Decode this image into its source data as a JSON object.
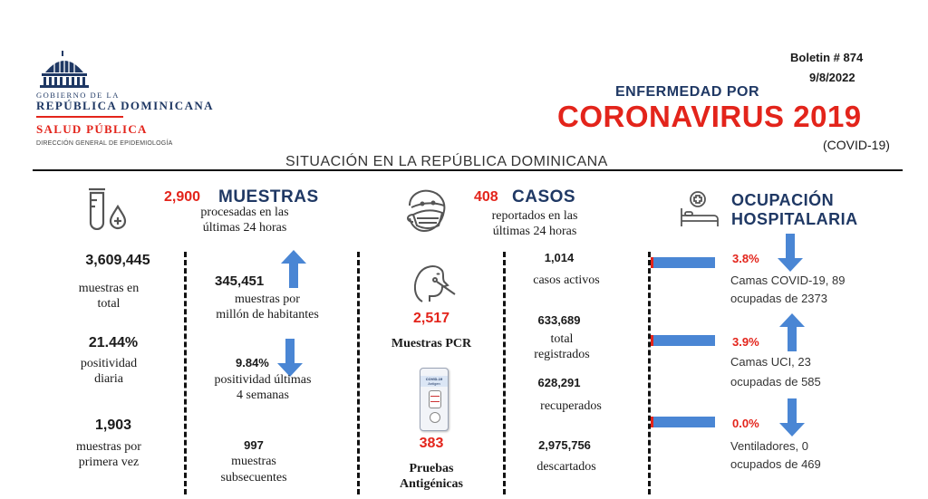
{
  "header": {
    "gov_line1": "GOBIERNO DE LA",
    "gov_line2": "REPÚBLICA DOMINICANA",
    "ministry": "SALUD PÚBLICA",
    "direction": "DIRECCIÓN GENERAL DE EPIDEMIOLOGÍA",
    "bulletin": "Boletin # 874",
    "date": "9/8/2022",
    "disease_line": "ENFERMEDAD POR",
    "disease_name": "CORONAVIRUS 2019",
    "disease_abbr": "(COVID-19)",
    "situation": "SITUACIÓN EN LA REPÚBLICA DOMINICANA"
  },
  "muestras": {
    "count": "2,900",
    "title": "MUESTRAS",
    "subtitle1": "procesadas en las",
    "subtitle2": "últimas 24 horas",
    "total_value": "3,609,445",
    "total_label1": "muestras en",
    "total_label2": "total",
    "positividad_value": "21.44%",
    "positividad_label1": "positividad",
    "positividad_label2": "diaria",
    "primera_value": "1,903",
    "primera_label1": "muestras por",
    "primera_label2": "primera vez",
    "millon_value": "345,451",
    "millon_label1": "muestras por",
    "millon_label2": "millón de habitantes",
    "semanas_value": "9.84%",
    "semanas_label1": "positividad últimas",
    "semanas_label2": "4 semanas",
    "subsec_value": "997",
    "subsec_label1": "muestras",
    "subsec_label2": "subsecuentes"
  },
  "pruebas": {
    "pcr_value": "2,517",
    "pcr_label": "Muestras PCR",
    "antigen_value": "383",
    "antigen_label1": "Pruebas",
    "antigen_label2": "Antigénicas",
    "kit_text1": "COVID-19",
    "kit_text2": "Antigen"
  },
  "casos": {
    "count": "408",
    "title": "CASOS",
    "subtitle1": "reportados en las",
    "subtitle2": "últimas 24 horas",
    "activos_value": "1,014",
    "activos_label": "casos activos",
    "total_value": "633,689",
    "total_label1": "total",
    "total_label2": "registrados",
    "recuperados_value": "628,291",
    "recuperados_label": "recuperados",
    "descartados_value": "2,975,756",
    "descartados_label": "descartados"
  },
  "ocupacion": {
    "title1": "OCUPACIÓN",
    "title2": "HOSPITALARIA",
    "covid_pct": "3.8%",
    "covid_fill": 3.8,
    "covid_label1": "Camas COVID-19,  89",
    "covid_label2": "ocupadas de 2373",
    "uci_pct": "3.9%",
    "uci_fill": 3.9,
    "uci_label1": "Camas UCI,  23",
    "uci_label2": "ocupadas de 585",
    "vent_pct": "0.0%",
    "vent_fill": 0.0,
    "vent_label1": "Ventiladores, 0",
    "vent_label2": "ocupados de 469"
  },
  "colors": {
    "red": "#e3241b",
    "navy": "#1f3864",
    "arrow_blue": "#4a86d4"
  }
}
